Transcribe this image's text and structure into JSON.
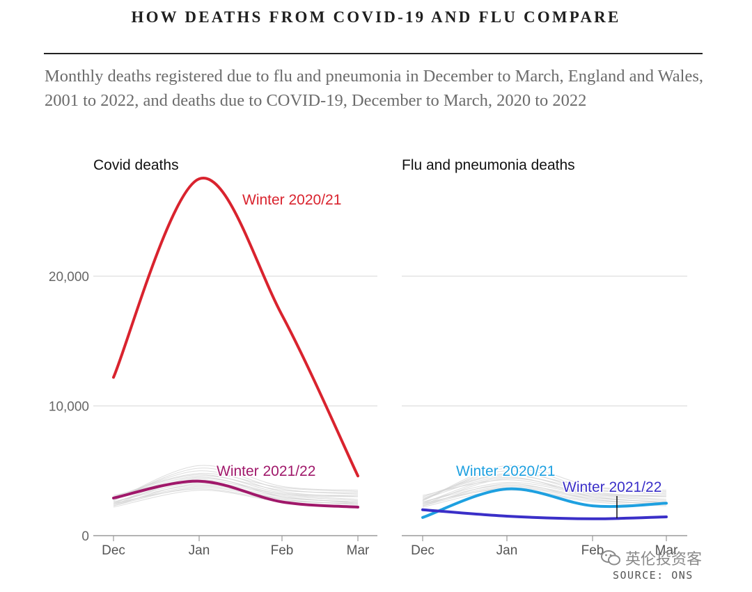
{
  "title": "HOW DEATHS FROM COVID-19 AND FLU COMPARE",
  "subtitle": "Monthly deaths registered due to flu and pneumonia in December to March, England and Wales, 2001 to 2022, and deaths due to COVID-19, December to March, 2020 to 2022",
  "source": "SOURCE: ONS",
  "watermark": "英伦投资客",
  "chart_data": [
    {
      "type": "line",
      "title": "Covid deaths",
      "categories": [
        "Dec",
        "Jan",
        "Feb",
        "Mar"
      ],
      "ylim": [
        0,
        30000
      ],
      "yticks": [
        0,
        10000,
        20000
      ],
      "ytick_labels": [
        "0",
        "10,000",
        "20,000"
      ],
      "grid": true,
      "series": [
        {
          "name": "Winter 2020/21",
          "values": [
            12200,
            27500,
            17000,
            4600
          ],
          "color": "#d9232e",
          "emphasis": true
        },
        {
          "name": "Winter 2021/22",
          "values": [
            2900,
            4200,
            2600,
            2200
          ],
          "color": "#a0186a",
          "emphasis": true
        }
      ],
      "background_series": [
        [
          2500,
          4500,
          3000,
          2600
        ],
        [
          2800,
          5000,
          3400,
          3000
        ],
        [
          2300,
          4000,
          2800,
          2400
        ],
        [
          2700,
          5200,
          3600,
          3200
        ],
        [
          2600,
          3900,
          3000,
          2500
        ],
        [
          2400,
          4400,
          3200,
          2800
        ],
        [
          3000,
          4800,
          3700,
          3400
        ],
        [
          2500,
          3600,
          2700,
          2500
        ],
        [
          2900,
          4700,
          3300,
          3100
        ],
        [
          2200,
          3500,
          2600,
          2300
        ],
        [
          2600,
          4100,
          3100,
          2700
        ],
        [
          2800,
          4600,
          3500,
          3300
        ],
        [
          2400,
          3800,
          2900,
          2600
        ],
        [
          2700,
          5400,
          3800,
          3500
        ],
        [
          2300,
          3700,
          2800,
          2400
        ],
        [
          3100,
          4300,
          3200,
          3000
        ]
      ]
    },
    {
      "type": "line",
      "title": "Flu and pneumonia deaths",
      "categories": [
        "Dec",
        "Jan",
        "Feb",
        "Mar"
      ],
      "ylim": [
        0,
        30000
      ],
      "yticks": [
        0,
        10000,
        20000
      ],
      "grid": true,
      "series": [
        {
          "name": "Winter 2020/21",
          "values": [
            1400,
            3600,
            2300,
            2500
          ],
          "color": "#1ea0e0",
          "emphasis": true
        },
        {
          "name": "Winter 2021/22",
          "values": [
            2000,
            1500,
            1300,
            1450
          ],
          "color": "#3a2fc8",
          "emphasis": true
        }
      ],
      "background_series": [
        [
          2500,
          4500,
          3000,
          2600
        ],
        [
          2800,
          5000,
          3400,
          3000
        ],
        [
          2300,
          4000,
          2800,
          2400
        ],
        [
          2700,
          5200,
          3600,
          3200
        ],
        [
          2600,
          3900,
          3000,
          2500
        ],
        [
          2400,
          4400,
          3200,
          2800
        ],
        [
          3000,
          4800,
          3700,
          3400
        ],
        [
          2500,
          3600,
          2700,
          2500
        ],
        [
          2900,
          4700,
          3300,
          3100
        ],
        [
          2200,
          3500,
          2600,
          2300
        ],
        [
          2600,
          4100,
          3100,
          2700
        ],
        [
          2800,
          4600,
          3500,
          3300
        ],
        [
          2400,
          3800,
          2900,
          2600
        ],
        [
          2700,
          5400,
          3800,
          3500
        ],
        [
          2300,
          3700,
          2800,
          2400
        ],
        [
          3100,
          4300,
          3200,
          3000
        ]
      ]
    }
  ]
}
